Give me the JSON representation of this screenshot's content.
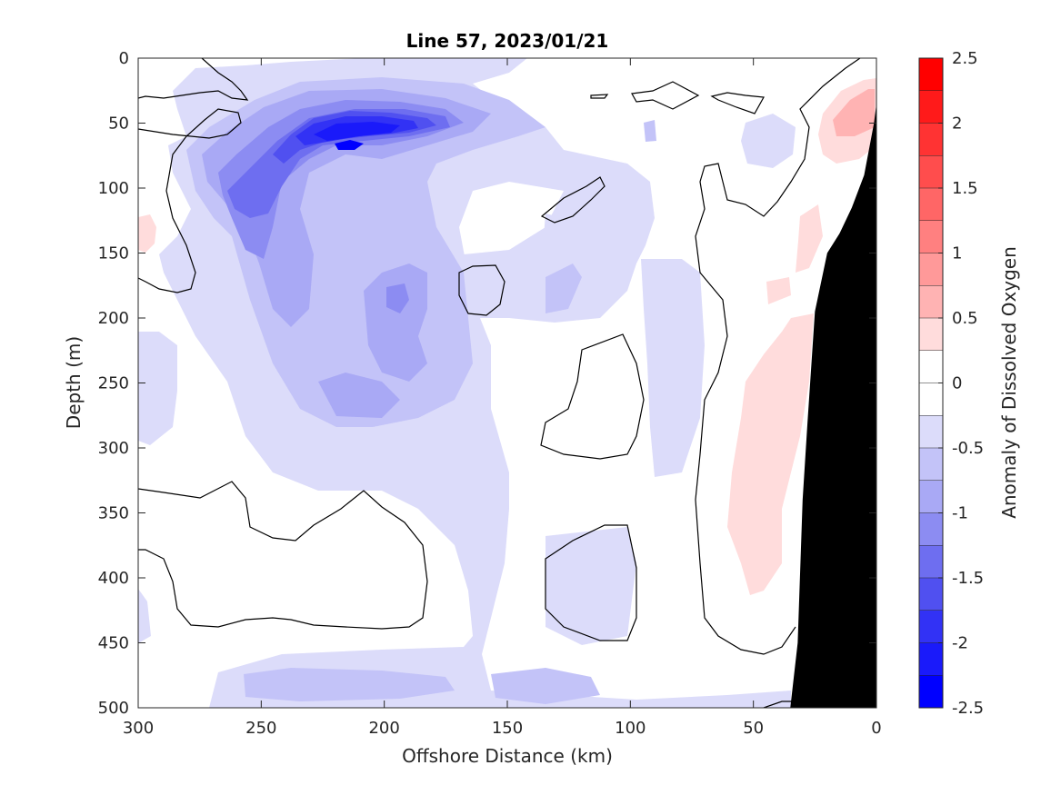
{
  "chart_data": {
    "type": "heatmap",
    "title": "Line 57, 2023/01/21",
    "xlabel": "Offshore Distance (km)",
    "ylabel": "Depth (m)",
    "colorbar_label": "Anomaly of Dissolved Oxygen",
    "xlim": [
      300,
      0
    ],
    "ylim": [
      0,
      500
    ],
    "x_reversed": true,
    "y_reversed": true,
    "xticks": [
      "300",
      "250",
      "200",
      "150",
      "100",
      "50",
      "0"
    ],
    "xtick_values": [
      300,
      250,
      200,
      150,
      100,
      50,
      0
    ],
    "yticks": [
      "0",
      "50",
      "100",
      "150",
      "200",
      "250",
      "300",
      "350",
      "400",
      "450",
      "500"
    ],
    "ytick_values": [
      0,
      50,
      100,
      150,
      200,
      250,
      300,
      350,
      400,
      450,
      500
    ],
    "clim": [
      -2.5,
      2.5
    ],
    "colorbar_ticks": [
      "2.5",
      "2",
      "1.5",
      "1",
      "0.5",
      "0",
      "-0.5",
      "-1",
      "-1.5",
      "-2",
      "-2.5"
    ],
    "colorbar_tick_values": [
      2.5,
      2,
      1.5,
      1,
      0.5,
      0,
      -0.5,
      -1,
      -1.5,
      -2,
      -2.5
    ],
    "contour_interval": 0.25,
    "zero_contour_drawn": true,
    "colors": {
      "negative": "#0000ff",
      "positive": "#ff0000",
      "bathymetry": "#000000",
      "background": "#ffffff"
    },
    "levels": [
      {
        "min": 2.25,
        "max": 2.5,
        "color": "#ff0000"
      },
      {
        "min": 2.0,
        "max": 2.25,
        "color": "#ff1a1a"
      },
      {
        "min": 1.75,
        "max": 2.0,
        "color": "#ff3333"
      },
      {
        "min": 1.5,
        "max": 1.75,
        "color": "#ff4d4d"
      },
      {
        "min": 1.25,
        "max": 1.5,
        "color": "#ff6666"
      },
      {
        "min": 1.0,
        "max": 1.25,
        "color": "#ff8080"
      },
      {
        "min": 0.75,
        "max": 1.0,
        "color": "#ff9999"
      },
      {
        "min": 0.5,
        "max": 0.75,
        "color": "#ffb3b3"
      },
      {
        "min": 0.25,
        "max": 0.5,
        "color": "#ffdcdc"
      },
      {
        "min": 0.0,
        "max": 0.25,
        "color": "#ffffff"
      },
      {
        "min": -0.25,
        "max": 0.0,
        "color": "#ffffff"
      },
      {
        "min": -0.5,
        "max": -0.25,
        "color": "#dcdcfa"
      },
      {
        "min": -0.75,
        "max": -0.5,
        "color": "#c3c3f8"
      },
      {
        "min": -1.0,
        "max": -0.75,
        "color": "#a9a9f5"
      },
      {
        "min": -1.25,
        "max": -1.0,
        "color": "#8c8cf2"
      },
      {
        "min": -1.5,
        "max": -1.25,
        "color": "#6e6ef0"
      },
      {
        "min": -1.75,
        "max": -1.5,
        "color": "#5050f0"
      },
      {
        "min": -2.0,
        "max": -1.75,
        "color": "#3232f5"
      },
      {
        "min": -2.25,
        "max": -2.0,
        "color": "#1a1afa"
      },
      {
        "min": -2.5,
        "max": -2.25,
        "color": "#0000ff"
      }
    ],
    "features": [
      {
        "name": "low-oxygen core",
        "x_km": 205,
        "depth_m": 70,
        "value": -2.3
      },
      {
        "name": "low-oxygen tongue",
        "x_km": 250,
        "depth_m": 110,
        "value": -1.4
      },
      {
        "name": "secondary minimum",
        "x_km": 188,
        "depth_m": 185,
        "value": -1.1
      },
      {
        "name": "deep minimum",
        "x_km": 135,
        "depth_m": 488,
        "value": -0.8
      },
      {
        "name": "nearshore high",
        "x_km": 10,
        "depth_m": 80,
        "value": 0.6
      },
      {
        "name": "slope high band",
        "x_km": 45,
        "depth_m": 320,
        "value": 0.4
      }
    ],
    "bathymetry": {
      "x_km": [
        35,
        32,
        30,
        28,
        25,
        20,
        15,
        10,
        5,
        3,
        1,
        0
      ],
      "depth_m": [
        500,
        450,
        340,
        280,
        195,
        150,
        135,
        115,
        90,
        70,
        50,
        35
      ]
    }
  }
}
